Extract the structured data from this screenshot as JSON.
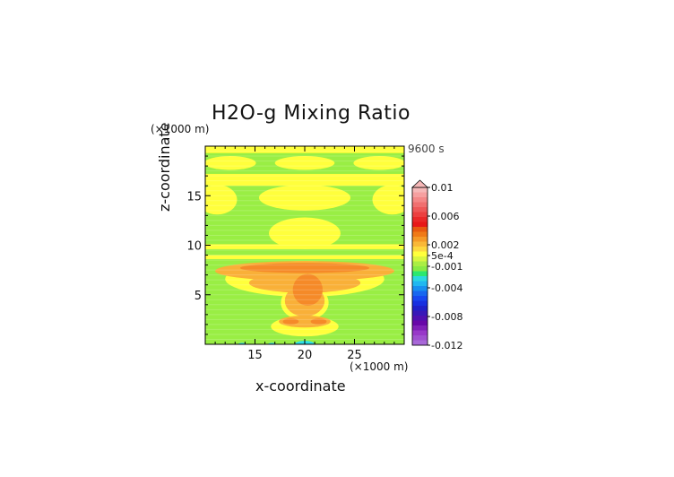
{
  "chart_data": {
    "type": "heatmap",
    "title": "H2O-g Mixing Ratio",
    "time_label": "9600 s",
    "xlabel": "x-coordinate",
    "ylabel": "z-coordinate",
    "x_unit_label": "(×1000 m)",
    "y_unit_label": "(×1000 m)",
    "xlim": [
      10,
      30
    ],
    "ylim": [
      0,
      20
    ],
    "x_ticks": [
      15,
      20,
      25
    ],
    "y_ticks": [
      5,
      10,
      15
    ],
    "colorbar": {
      "tick_labels": [
        "0.01",
        "0.006",
        "0.002",
        "5e-4",
        "-0.001",
        "-0.004",
        "-0.008",
        "-0.012"
      ],
      "tick_values": [
        0.01,
        0.006,
        0.002,
        0.0005,
        -0.001,
        -0.004,
        -0.008,
        -0.012
      ],
      "range": [
        -0.012,
        0.01
      ]
    },
    "background_level": "green",
    "regions": [
      {
        "level": "yellow",
        "shape": "rect",
        "x": [
          10,
          30
        ],
        "z": [
          19.3,
          20
        ]
      },
      {
        "level": "yellow",
        "shape": "ellipse",
        "cx": 12.5,
        "cz": 18.3,
        "rx": 2.6,
        "rz": 0.7
      },
      {
        "level": "yellow",
        "shape": "ellipse",
        "cx": 20,
        "cz": 18.3,
        "rx": 3.0,
        "rz": 0.7
      },
      {
        "level": "yellow",
        "shape": "ellipse",
        "cx": 27.5,
        "cz": 18.3,
        "rx": 2.6,
        "rz": 0.7
      },
      {
        "level": "yellow",
        "shape": "rect",
        "x": [
          10,
          30
        ],
        "z": [
          16.0,
          17.2
        ]
      },
      {
        "level": "yellow",
        "shape": "ellipse",
        "cx": 11.2,
        "cz": 14.6,
        "rx": 2.0,
        "rz": 1.5
      },
      {
        "level": "yellow",
        "shape": "ellipse",
        "cx": 28.8,
        "cz": 14.6,
        "rx": 2.0,
        "rz": 1.5
      },
      {
        "level": "yellow",
        "shape": "ellipse",
        "cx": 20,
        "cz": 14.8,
        "rx": 4.6,
        "rz": 1.3
      },
      {
        "level": "yellow",
        "shape": "ellipse",
        "cx": 20,
        "cz": 11.2,
        "rx": 3.6,
        "rz": 1.6
      },
      {
        "level": "yellow",
        "shape": "rect",
        "x": [
          10,
          30
        ],
        "z": [
          9.6,
          10.1
        ]
      },
      {
        "level": "yellow",
        "shape": "rect",
        "x": [
          10,
          30
        ],
        "z": [
          8.6,
          9.0
        ]
      },
      {
        "level": "yellow",
        "shape": "ellipse",
        "cx": 20,
        "cz": 6.6,
        "rx": 8.0,
        "rz": 1.8
      },
      {
        "level": "yellow",
        "shape": "ellipse",
        "cx": 20,
        "cz": 4.2,
        "rx": 2.4,
        "rz": 1.8
      },
      {
        "level": "yellow",
        "shape": "ellipse",
        "cx": 20,
        "cz": 1.8,
        "rx": 3.4,
        "rz": 1.0
      },
      {
        "level": "orange-light",
        "shape": "ellipse",
        "cx": 20,
        "cz": 7.4,
        "rx": 9.0,
        "rz": 1.0
      },
      {
        "level": "orange-light",
        "shape": "ellipse",
        "cx": 20,
        "cz": 6.2,
        "rx": 5.6,
        "rz": 1.0
      },
      {
        "level": "orange-light",
        "shape": "ellipse",
        "cx": 20,
        "cz": 4.4,
        "rx": 2.0,
        "rz": 1.6
      },
      {
        "level": "orange-light",
        "shape": "ellipse",
        "cx": 20,
        "cz": 2.3,
        "rx": 2.6,
        "rz": 0.6
      },
      {
        "level": "orange",
        "shape": "ellipse",
        "cx": 20,
        "cz": 7.7,
        "rx": 6.5,
        "rz": 0.5
      },
      {
        "level": "orange",
        "shape": "ellipse",
        "cx": 20.3,
        "cz": 5.5,
        "rx": 1.5,
        "rz": 1.6
      },
      {
        "level": "orange",
        "shape": "ellipse",
        "cx": 18.6,
        "cz": 2.3,
        "rx": 0.8,
        "rz": 0.3
      },
      {
        "level": "orange",
        "shape": "ellipse",
        "cx": 21.4,
        "cz": 2.3,
        "rx": 0.8,
        "rz": 0.3
      },
      {
        "level": "cyan",
        "shape": "ellipse",
        "cx": 20,
        "cz": 0,
        "rx": 1.0,
        "rz": 0.35
      },
      {
        "level": "cyan",
        "shape": "ellipse",
        "cx": 13.7,
        "cz": 0,
        "rx": 0.4,
        "rz": 0.15
      },
      {
        "level": "cyan",
        "shape": "ellipse",
        "cx": 16.7,
        "cz": 0,
        "rx": 0.4,
        "rz": 0.15
      }
    ],
    "level_colors": {
      "green": "#99ee44",
      "yellow": "#ffff3c",
      "orange-light": "#f9b038",
      "orange": "#f58a28",
      "cyan": "#2ce0e8"
    },
    "colorbar_colors": [
      "#f6b8b8",
      "#f6a0a0",
      "#f48888",
      "#f07070",
      "#ee5858",
      "#ec4040",
      "#ea2828",
      "#e81818",
      "#e85a10",
      "#f07a18",
      "#f59a28",
      "#f9b838",
      "#fdd840",
      "#ffff3c",
      "#d8f640",
      "#aaee44",
      "#88ea44",
      "#2ce870",
      "#2cd8e0",
      "#20b8f0",
      "#1890f0",
      "#1868f0",
      "#1848f0",
      "#1830e0",
      "#2020c8",
      "#3818b8",
      "#5010b0",
      "#6808a8",
      "#8020b8",
      "#9838c8",
      "#a050d0",
      "#a868d8"
    ]
  }
}
